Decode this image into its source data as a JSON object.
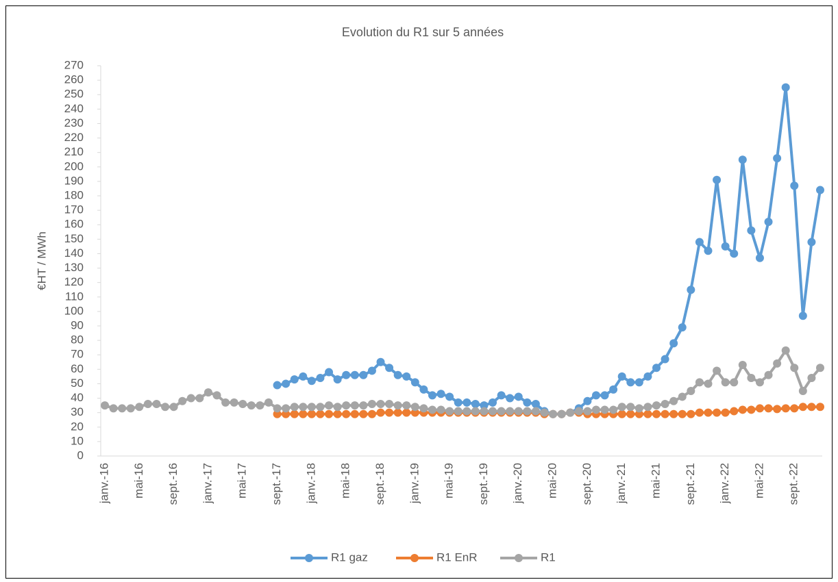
{
  "chart_data": {
    "type": "line",
    "title": "Evolution du R1 sur 5 années",
    "y_label": "€HT / MWh",
    "categories": [
      "janv.-16",
      null,
      null,
      null,
      "mai-16",
      null,
      null,
      null,
      "sept.-16",
      null,
      null,
      null,
      "janv.-17",
      null,
      null,
      null,
      "mai-17",
      null,
      null,
      null,
      "sept.-17",
      null,
      null,
      null,
      "janv.-18",
      null,
      null,
      null,
      "mai-18",
      null,
      null,
      null,
      "sept.-18",
      null,
      null,
      null,
      "janv.-19",
      null,
      null,
      null,
      "mai-19",
      null,
      null,
      null,
      "sept.-19",
      null,
      null,
      null,
      "janv.-20",
      null,
      null,
      null,
      "mai-20",
      null,
      null,
      null,
      "sept.-20",
      null,
      null,
      null,
      "janv.-21",
      null,
      null,
      null,
      "mai-21",
      null,
      null,
      null,
      "sept.-21",
      null,
      null,
      null,
      "janv.-22",
      null,
      null,
      null,
      "mai-22",
      null,
      null,
      null,
      "sept.-22",
      null,
      null,
      null
    ],
    "series": [
      {
        "name": "R1 gaz",
        "color": "#5b9bd5",
        "values": [
          null,
          null,
          null,
          null,
          null,
          null,
          null,
          null,
          null,
          null,
          null,
          null,
          null,
          null,
          null,
          null,
          null,
          null,
          null,
          null,
          49,
          50,
          53,
          55,
          52,
          54,
          58,
          53,
          56,
          56,
          56,
          59,
          65,
          61,
          56,
          55,
          51,
          46,
          42,
          43,
          41,
          37,
          37,
          36,
          35,
          37,
          42,
          40,
          41,
          37,
          36,
          31,
          29,
          29,
          30,
          33,
          38,
          42,
          42,
          46,
          55,
          51,
          51,
          55,
          61,
          67,
          78,
          89,
          115,
          148,
          142,
          191,
          145,
          140,
          205,
          156,
          137,
          162,
          206,
          255,
          187,
          97,
          148,
          184
        ]
      },
      {
        "name": "R1 EnR",
        "color": "#ed7d31",
        "values": [
          null,
          null,
          null,
          null,
          null,
          null,
          null,
          null,
          null,
          null,
          null,
          null,
          null,
          null,
          null,
          null,
          null,
          null,
          null,
          null,
          29,
          29,
          29,
          29,
          29,
          29,
          29,
          29,
          29,
          29,
          29,
          29,
          30,
          30,
          30,
          30,
          30,
          30,
          30,
          30,
          30,
          30,
          30,
          30,
          30,
          30,
          30,
          30,
          30,
          30,
          30,
          29,
          29,
          29,
          30,
          30,
          29,
          29,
          29,
          29,
          29,
          29,
          29,
          29,
          29,
          29,
          29,
          29,
          29,
          30,
          30,
          30,
          30,
          31,
          32,
          32,
          33,
          33,
          32.5,
          33,
          33,
          34,
          34,
          34
        ]
      },
      {
        "name": "R1",
        "color": "#a5a5a5",
        "values": [
          35,
          33,
          33,
          33,
          34,
          36,
          36,
          34,
          34,
          38,
          40,
          40,
          44,
          42,
          37,
          37,
          36,
          35,
          35,
          37,
          33,
          33,
          34,
          34,
          34,
          34,
          35,
          34,
          35,
          35,
          35,
          36,
          36,
          36,
          35,
          35,
          34,
          33,
          32,
          32,
          31,
          31,
          31,
          31,
          31,
          31,
          31,
          31,
          31,
          31,
          31,
          30,
          29,
          29,
          30,
          31,
          31,
          32,
          32,
          32,
          34,
          34,
          33,
          34,
          35,
          36,
          38,
          41,
          45,
          51,
          50,
          59,
          51,
          51,
          63,
          54,
          51,
          56,
          64,
          73,
          61,
          45,
          54,
          61
        ]
      }
    ],
    "ylim": [
      0,
      270
    ],
    "yticks": [
      0,
      10,
      20,
      30,
      40,
      50,
      60,
      70,
      80,
      90,
      100,
      110,
      120,
      130,
      140,
      150,
      160,
      170,
      180,
      190,
      200,
      210,
      220,
      230,
      240,
      250,
      260,
      270
    ],
    "grid": false,
    "legend": "bottom"
  }
}
